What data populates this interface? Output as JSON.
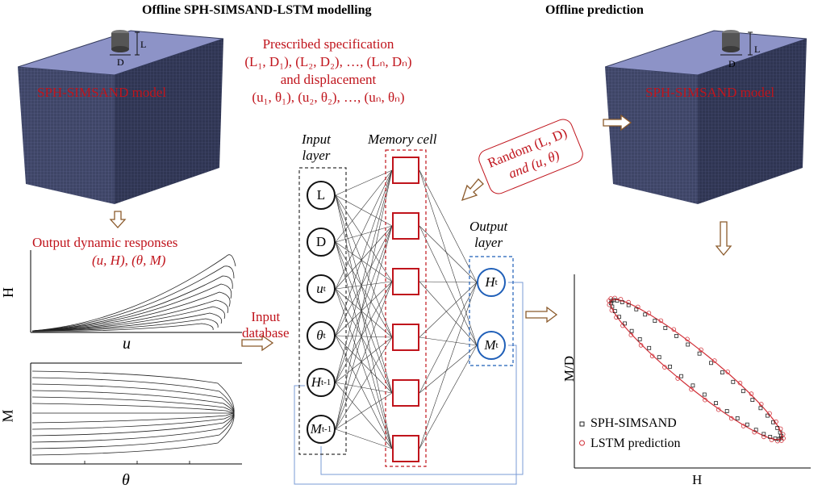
{
  "titles": {
    "left": "Offline SPH-SIMSAND-LSTM modelling",
    "right": "Offline prediction"
  },
  "model": {
    "label": "SPH-SIMSAND model",
    "dim_l": "L",
    "dim_d": "D"
  },
  "spec": {
    "line1": "Prescribed specification",
    "line2": "(L₁, D₁), (L₂, D₂), …, (Lₙ, Dₙ)",
    "line3": "and displacement",
    "line4": "(u₁, θ₁), (u₂, θ₂), …, (uₙ, θₙ)"
  },
  "responses": {
    "line1": "Output dynamic responses",
    "line2": "(u, H), (θ, M)"
  },
  "plots": {
    "top_ylabel": "H",
    "top_xlabel": "u",
    "bottom_ylabel": "M",
    "bottom_xlabel": "θ"
  },
  "input_database": {
    "line1": "Input",
    "line2": "database"
  },
  "network": {
    "input_layer_line1": "Input",
    "input_layer_line2": "layer",
    "memory_cell": "Memory cell",
    "output_layer_line1": "Output",
    "output_layer_line2": "layer",
    "input_nodes": [
      {
        "base": "L",
        "sup": ""
      },
      {
        "base": "D",
        "sup": ""
      },
      {
        "base": "u",
        "sup": "t"
      },
      {
        "base": "θ",
        "sup": "t"
      },
      {
        "base": "H",
        "sup": "t-1"
      },
      {
        "base": "M",
        "sup": "t-1"
      }
    ],
    "output_nodes": [
      {
        "base": "H",
        "sup": "t"
      },
      {
        "base": "M",
        "sup": "t"
      }
    ]
  },
  "random_box": {
    "line1": "Random (L, D)",
    "line2": "and (u, θ)"
  },
  "prediction_chart": {
    "ylabel": "M/D",
    "xlabel": "H",
    "legend": [
      "SPH-SIMSAND",
      "LSTM prediction"
    ]
  },
  "colors": {
    "accent_red": "#c0141c",
    "output_blue": "#1f5fb8",
    "arrow_brown": "#8b5a2b",
    "model_blue": "#4a5276"
  }
}
